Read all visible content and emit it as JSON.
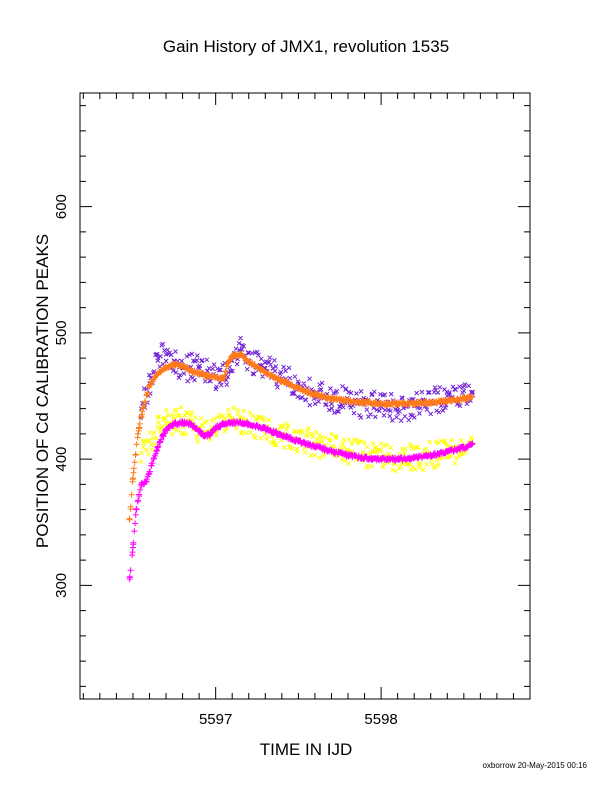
{
  "chart_data": {
    "type": "scatter",
    "title": "Gain History of JMX1, revolution 1535",
    "xlabel": "TIME IN IJD",
    "ylabel": "POSITION OF Cd CALIBRATION PEAKS",
    "xlim": [
      5596.18,
      5598.9
    ],
    "ylim": [
      210,
      690
    ],
    "x_ticks": [
      5597,
      5598
    ],
    "y_ticks": [
      300,
      400,
      500,
      600
    ],
    "x_minor_step": 0.1,
    "y_minor_step": 20,
    "grid": false,
    "legend": "none",
    "credit": "oxborrow 20-May-2015 00:16",
    "colors": {
      "purple": "#7020d8",
      "orange": "#ff7a1a",
      "yellow": "#ffff00",
      "magenta": "#ff00ff"
    },
    "series": [
      {
        "color": "#7020d8",
        "marker": "x",
        "x": [
          5596.55,
          5596.6,
          5596.65,
          5596.7,
          5596.75,
          5596.8,
          5596.85,
          5596.9,
          5596.95,
          5597.0,
          5597.05,
          5597.1,
          5597.15,
          5597.2,
          5597.3,
          5597.4,
          5597.5,
          5597.6,
          5597.7,
          5597.8,
          5597.9,
          5598.0,
          5598.1,
          5598.2,
          5598.3,
          5598.4,
          5598.5,
          5598.55
        ],
        "y": [
          440,
          460,
          478,
          483,
          478,
          472,
          473,
          472,
          470,
          466,
          464,
          478,
          485,
          478,
          472,
          464,
          458,
          451,
          448,
          446,
          443,
          442,
          441,
          442,
          446,
          450,
          454,
          452
        ]
      },
      {
        "color": "#ff7a1a",
        "marker": "+",
        "x": [
          5596.48,
          5596.5,
          5596.53,
          5596.56,
          5596.6,
          5596.65,
          5596.7,
          5596.75,
          5596.8,
          5596.85,
          5596.9,
          5596.95,
          5597.0,
          5597.05,
          5597.07,
          5597.1,
          5597.15,
          5597.2,
          5597.3,
          5597.4,
          5597.5,
          5597.6,
          5597.7,
          5597.8,
          5597.9,
          5598.0,
          5598.1,
          5598.2,
          5598.3,
          5598.4,
          5598.5,
          5598.55
        ],
        "y": [
          352,
          385,
          420,
          440,
          458,
          468,
          473,
          475,
          474,
          470,
          468,
          466,
          465,
          464,
          476,
          482,
          483,
          477,
          469,
          462,
          456,
          451,
          448,
          446,
          445,
          444,
          444,
          444,
          445,
          446,
          448,
          449
        ]
      },
      {
        "color": "#ffff00",
        "marker": "x",
        "x": [
          5596.55,
          5596.6,
          5596.65,
          5596.7,
          5596.75,
          5596.8,
          5596.85,
          5596.9,
          5596.95,
          5597.0,
          5597.05,
          5597.1,
          5597.2,
          5597.3,
          5597.4,
          5597.5,
          5597.6,
          5597.7,
          5597.8,
          5597.9,
          5598.0,
          5598.1,
          5598.2,
          5598.3,
          5598.4,
          5598.5,
          5598.55
        ],
        "y": [
          405,
          415,
          425,
          428,
          431,
          430,
          428,
          423,
          419,
          425,
          430,
          432,
          428,
          424,
          420,
          416,
          413,
          410,
          407,
          404,
          402,
          401,
          401,
          403,
          405,
          408,
          412
        ]
      },
      {
        "color": "#ff00ff",
        "marker": "+",
        "x": [
          5596.48,
          5596.5,
          5596.52,
          5596.55,
          5596.58,
          5596.6,
          5596.65,
          5596.7,
          5596.75,
          5596.8,
          5596.85,
          5596.9,
          5596.93,
          5596.97,
          5597.0,
          5597.05,
          5597.1,
          5597.15,
          5597.2,
          5597.3,
          5597.4,
          5597.5,
          5597.6,
          5597.7,
          5597.8,
          5597.9,
          5598.0,
          5598.1,
          5598.2,
          5598.3,
          5598.4,
          5598.5,
          5598.55
        ],
        "y": [
          305,
          330,
          360,
          380,
          382,
          390,
          410,
          423,
          428,
          429,
          428,
          422,
          418,
          420,
          425,
          428,
          429,
          429,
          428,
          424,
          419,
          414,
          410,
          406,
          403,
          401,
          400,
          400,
          401,
          403,
          406,
          409,
          412
        ]
      }
    ]
  }
}
